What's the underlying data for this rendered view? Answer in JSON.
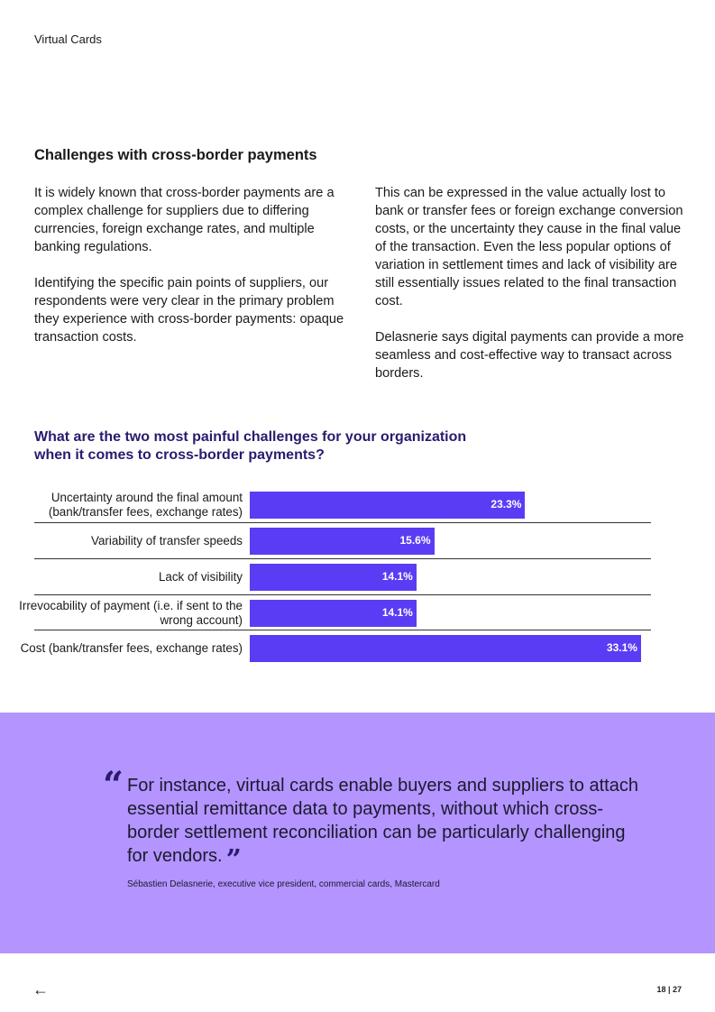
{
  "header": {
    "title": "Virtual Cards"
  },
  "section": {
    "heading": "Challenges with cross-border payments",
    "left_paragraphs": [
      "It is widely known that cross-border payments are a complex challenge for suppliers due to differing currencies, foreign exchange rates, and multiple banking regulations.",
      "Identifying the specific pain points of suppliers, our respondents were very clear in the primary problem they experience with cross-border payments: opaque transaction costs."
    ],
    "right_paragraphs": [
      "This can be expressed in the value actually lost to bank or transfer fees or foreign exchange conversion costs, or the uncertainty they cause in the final value of the transaction. Even the less popular options of variation in settlement times and lack of visibility are still essentially issues related to the final transaction cost.",
      "Delasnerie says digital payments can provide a more seamless and cost-effective way to transact across borders."
    ]
  },
  "chart_data": {
    "type": "bar",
    "orientation": "horizontal",
    "title": "What are the two most painful challenges for your organization when it comes to cross-border payments?",
    "categories": [
      "Uncertainty around the final amount (bank/transfer fees, exchange rates)",
      "Variability of transfer speeds",
      "Lack of visibility",
      "Irrevocability of payment (i.e. if sent to the wrong account)",
      "Cost (bank/transfer fees, exchange rates)"
    ],
    "values": [
      23.3,
      15.6,
      14.1,
      14.1,
      33.1
    ],
    "labels": [
      "23.3%",
      "15.6%",
      "14.1%",
      "14.1%",
      "33.1%"
    ],
    "bar_color": "#5b3cf5",
    "grid": false
  },
  "quote": {
    "text": "For instance, virtual cards enable buyers and suppliers to attach essential remittance data to payments, without which cross-border settlement reconciliation can be particularly challenging for vendors.",
    "open_mark": "“",
    "close_mark": "”",
    "attribution": "Sébastien Delasnerie, executive vice president, commercial cards, Mastercard",
    "background": "#b494ff"
  },
  "footer": {
    "back_icon": "arrow-left-icon",
    "back_glyph": "←",
    "page": "18 | 27"
  }
}
